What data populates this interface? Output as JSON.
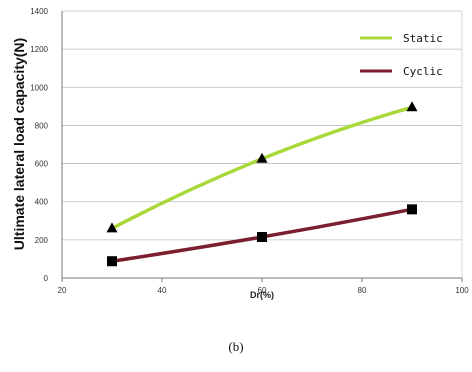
{
  "chart_data": {
    "type": "line",
    "title": "",
    "xlabel": "Dr(%)",
    "ylabel": "Ultimate lateral load capacity(N)",
    "xlim": [
      20,
      100
    ],
    "ylim": [
      0,
      1400
    ],
    "xticks": [
      "20",
      "40",
      "60",
      "80",
      "100"
    ],
    "yticks": [
      "0",
      "200",
      "400",
      "600",
      "800",
      "1000",
      "1200",
      "1400"
    ],
    "grid": "horizontal",
    "legend_position": "top-right",
    "series": [
      {
        "name": "Static",
        "x": [
          30,
          60,
          90
        ],
        "y": [
          260,
          625,
          895
        ],
        "color": "#a8d83a",
        "marker": "triangle"
      },
      {
        "name": "Cyclic",
        "x": [
          30,
          60,
          90
        ],
        "y": [
          88,
          215,
          360
        ],
        "color": "#7b1f2e",
        "marker": "square"
      }
    ]
  },
  "caption": "(b)"
}
